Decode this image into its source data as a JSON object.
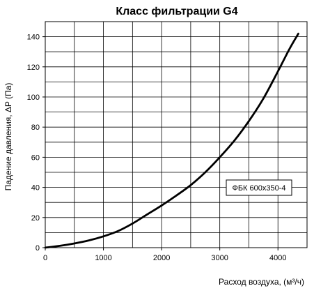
{
  "chart_data": {
    "type": "line",
    "title": "Класс фильтрации G4",
    "xlabel": "Расход воздуха, (м³/ч)",
    "ylabel": "Падение давления, ΔP (Па)",
    "xlim": [
      0,
      4500
    ],
    "ylim": [
      0,
      150
    ],
    "x_ticks": [
      0,
      1000,
      2000,
      3000,
      4000
    ],
    "y_ticks": [
      0,
      20,
      40,
      60,
      80,
      100,
      120,
      140
    ],
    "x_tick_labels": [
      "0",
      "1000",
      "2000",
      "3000",
      "4000"
    ],
    "y_tick_labels": [
      "0",
      "20",
      "40",
      "60",
      "80",
      "100",
      "120",
      "140"
    ],
    "grid": true,
    "series": [
      {
        "label": "ФБК  600x350-4",
        "color": "#000000",
        "x": [
          0,
          250,
          500,
          750,
          1000,
          1250,
          1500,
          1750,
          2000,
          2250,
          2500,
          2750,
          3000,
          3250,
          3500,
          3750,
          4000,
          4200,
          4350
        ],
        "y": [
          0,
          1.2,
          2.8,
          4.8,
          7.5,
          11,
          16,
          22,
          28,
          34.5,
          41.5,
          50,
          60,
          71,
          84,
          99,
          117,
          132,
          142
        ]
      }
    ]
  }
}
